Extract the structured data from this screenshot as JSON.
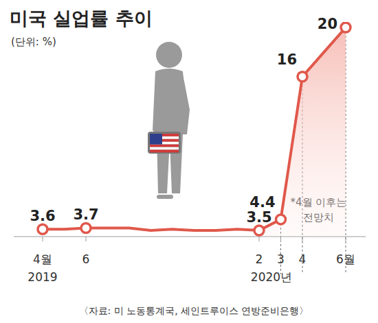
{
  "chart_data": {
    "type": "line",
    "title": "미국 실업률 추이",
    "subtitle": "(단위: %)",
    "source": "〈자료: 미 노동통계국, 세인트루이스 연방준비은행〉",
    "categories": [
      "4월",
      null,
      "6",
      null,
      null,
      null,
      null,
      null,
      null,
      null,
      "2",
      "3",
      "4",
      null,
      "6월"
    ],
    "values": [
      3.6,
      3.6,
      3.7,
      3.7,
      3.7,
      3.5,
      3.6,
      3.5,
      3.5,
      3.6,
      3.5,
      4.4,
      16,
      18,
      20
    ],
    "value_labels": [
      "3.6",
      null,
      "3.7",
      null,
      null,
      null,
      null,
      null,
      null,
      null,
      "3.5",
      "4.4",
      "16",
      null,
      "20"
    ],
    "data_labels": true,
    "color": "#e0584b",
    "marker": "circle",
    "ylim": [
      3,
      20
    ],
    "tick_labels": "x",
    "grid": false,
    "annotations": [
      {
        "text": "2019",
        "category": 0
      },
      {
        "text": "2020년",
        "category": 10
      }
    ],
    "note": {
      "lines": [
        "*4월 이후는",
        "전망치"
      ],
      "categories": [
        11,
        12,
        14
      ]
    }
  }
}
